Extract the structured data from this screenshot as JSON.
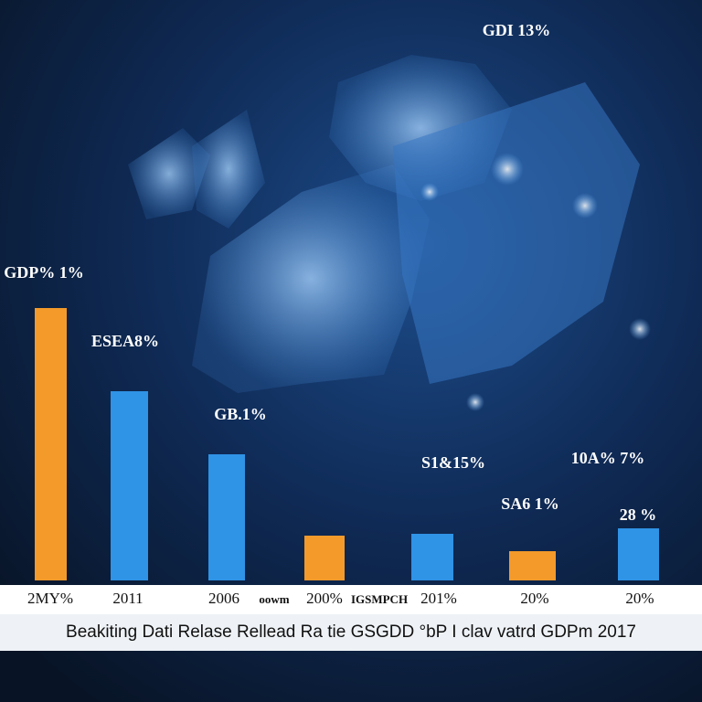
{
  "chart_data": {
    "type": "bar",
    "title": "Beakiting Dati Relase Rellead Ra tie GSGDD °bP I clav vatrd GDPm 2017",
    "categories": [
      "2MY%",
      "2011",
      "2006",
      "200%",
      "201%",
      "20%",
      "20%"
    ],
    "values": [
      298,
      207,
      138,
      49,
      51,
      32,
      57
    ],
    "colors": [
      "#f39a2b",
      "#2f93e6",
      "#2f93e6",
      "#f39a2b",
      "#2f93e6",
      "#f39a2b",
      "#2f93e6"
    ],
    "annotations": [
      "GDI 13%",
      "GDP% 1%",
      "ESEA8%",
      "GB.1%",
      "S1&15%",
      "SA6 1%",
      "10A% 7%",
      "28 %",
      "oowm",
      "IGSMPCH"
    ]
  }
}
